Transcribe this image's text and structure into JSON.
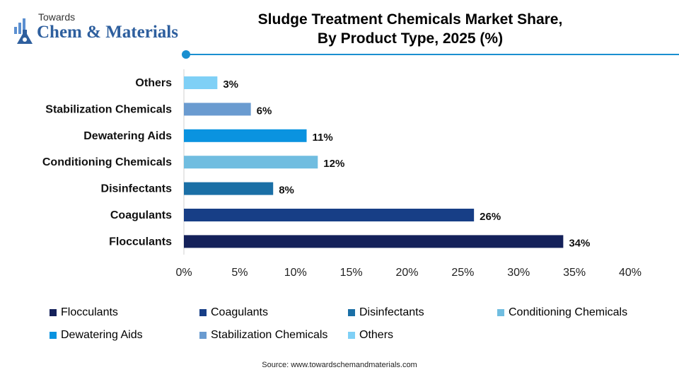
{
  "logo": {
    "line1": "Towards",
    "line2": "Chem & Materials"
  },
  "header": {
    "title_line1": "Sludge Treatment Chemicals Market Share,",
    "title_line2": "By Product Type, 2025 (%)",
    "accent_color": "#1a8fd0"
  },
  "chart_data": {
    "type": "bar",
    "orientation": "horizontal",
    "title": "Sludge Treatment Chemicals Market Share, By Product Type, 2025 (%)",
    "categories": [
      "Flocculants",
      "Coagulants",
      "Disinfectants",
      "Conditioning Chemicals",
      "Dewatering Aids",
      "Stabilization Chemicals",
      "Others"
    ],
    "values": [
      34,
      26,
      8,
      12,
      11,
      6,
      3
    ],
    "value_labels": [
      "34%",
      "26%",
      "8%",
      "12%",
      "11%",
      "6%",
      "3%"
    ],
    "colors": [
      "#14215a",
      "#173e86",
      "#1a6fa6",
      "#70bde0",
      "#0a93e0",
      "#6a9bd0",
      "#7fd0f6"
    ],
    "xlim": [
      0,
      40
    ],
    "x_ticks": [
      0,
      5,
      10,
      15,
      20,
      25,
      30,
      35,
      40
    ],
    "x_tick_labels": [
      "0%",
      "5%",
      "10%",
      "15%",
      "20%",
      "25%",
      "30%",
      "35%",
      "40%"
    ],
    "xlabel": "",
    "ylabel": "",
    "grid": false,
    "legend_position": "bottom"
  },
  "legend": {
    "items": [
      {
        "label": "Flocculants",
        "color": "#14215a"
      },
      {
        "label": "Coagulants",
        "color": "#173e86"
      },
      {
        "label": "Disinfectants",
        "color": "#1a6fa6"
      },
      {
        "label": "Conditioning Chemicals",
        "color": "#70bde0"
      },
      {
        "label": "Dewatering Aids",
        "color": "#0a93e0"
      },
      {
        "label": "Stabilization Chemicals",
        "color": "#6a9bd0"
      },
      {
        "label": "Others",
        "color": "#7fd0f6"
      }
    ]
  },
  "footer": {
    "source": "Source: www.towardschemandmaterials.com"
  }
}
